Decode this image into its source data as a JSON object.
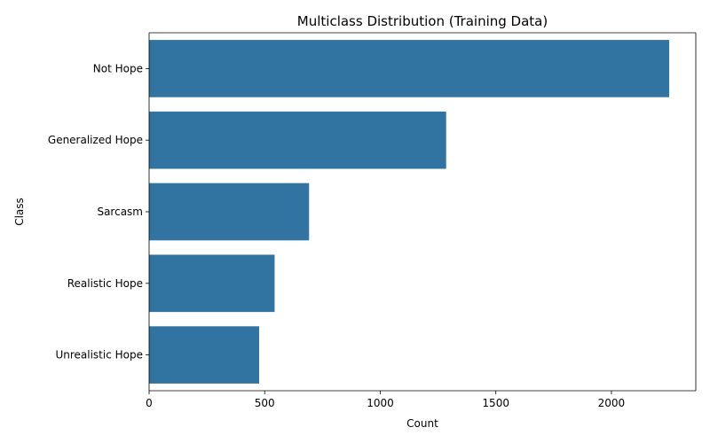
{
  "chart_data": {
    "type": "bar",
    "orientation": "horizontal",
    "title": "Multiclass Distribution (Training Data)",
    "xlabel": "Count",
    "ylabel": "Class",
    "categories": [
      "Not Hope",
      "Generalized Hope",
      "Sarcasm",
      "Realistic Hope",
      "Unrealistic Hope"
    ],
    "values": [
      2250,
      1285,
      692,
      543,
      476
    ],
    "xlim": [
      0,
      2365
    ],
    "xticks": [
      0,
      500,
      1000,
      1500,
      2000
    ],
    "grid": false,
    "bar_color": "#3274a1"
  }
}
